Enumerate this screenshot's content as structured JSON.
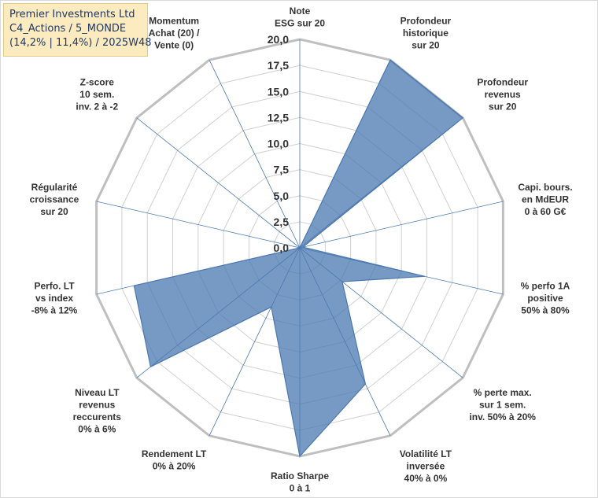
{
  "info_box": {
    "company": "Premier Investments Ltd",
    "category": "C4_Actions / 5_MONDE",
    "summary": "(14,2% | 11,4%) / 2025W48"
  },
  "chart_data": {
    "type": "radar",
    "title": "",
    "rmin": 0,
    "rmax": 20,
    "ticks": [
      "0,0",
      "2,5",
      "5,0",
      "7,5",
      "10,0",
      "12,5",
      "15,0",
      "17,5",
      "20,0"
    ],
    "axes": [
      {
        "label": "Note\nESG sur 20",
        "value": 0
      },
      {
        "label": "Profondeur\nhistorique\nsur 20",
        "value": 20
      },
      {
        "label": "Profondeur\nrevenus\nsur 20",
        "value": 20
      },
      {
        "label": "Capi. bours.\nen MdEUR\n0 à 60 G€",
        "value": 0.3
      },
      {
        "label": "% perfo 1A\npositive\n50% à 80%",
        "value": 12.3
      },
      {
        "label": "% perte max.\nsur 1 sem.\ninv. 50% à 20%",
        "value": 5.2
      },
      {
        "label": "Volatilité LT\ninversée\n40% à 0%",
        "value": 14.5
      },
      {
        "label": "Ratio Sharpe\n0 à 1",
        "value": 20
      },
      {
        "label": "Rendement LT\n0% à 20%",
        "value": 6.3
      },
      {
        "label": "Niveau LT\nrevenus\nreccurents\n0% à 6%",
        "value": 18.3
      },
      {
        "label": "Perfo. LT\nvs index\n-8% à 12%",
        "value": 16.3
      },
      {
        "label": "Régularité\ncroissance\nsur 20",
        "value": 0
      },
      {
        "label": "Z-score\n10 sem.\ninv. 2 à -2",
        "value": 0
      },
      {
        "label": "Momentum\nAchat (20) /\nVente (0)",
        "value": 0
      }
    ],
    "series_color": "#4a78b0",
    "fill_color": "#4a78b0",
    "fill_opacity": 0.75,
    "grid_color": "#d0d0d0",
    "outer_grid_color": "#bfbfbf",
    "spoke_color": "#4a78b0"
  }
}
